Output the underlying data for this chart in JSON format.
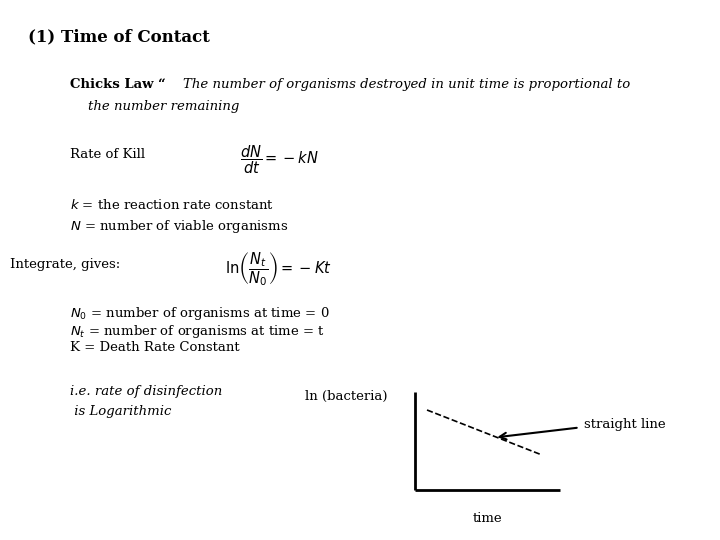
{
  "background_color": "#ffffff",
  "title_text": "(1) Time of Contact",
  "title_fontsize": 12,
  "title_fontweight": "bold",
  "chicks_bold": "Chicks Law “",
  "chicks_italic_1": "The number of organisms destroyed in unit time is proportional to",
  "chicks_italic_2": "the number remaining",
  "rate_label": "Rate of Kill",
  "k_line": "$k$ = the reaction rate constant",
  "N_line": "$N$ = number of viable organisms",
  "integrate_label": "Integrate, gives:",
  "N0_line": "$N_0$ = number of organisms at time = 0",
  "Nt_line": "$N_t$ = number of organisms at time = t",
  "K_line": "K = Death Rate Constant",
  "ie_line1": "i.e. rate of disinfection",
  "ie_line2": " is Logarithmic",
  "ln_bacteria": "ln (bacteria)",
  "time_label": "time",
  "straight_line_label": "straight line",
  "font_size_body": 9.5,
  "text_color": "#000000"
}
